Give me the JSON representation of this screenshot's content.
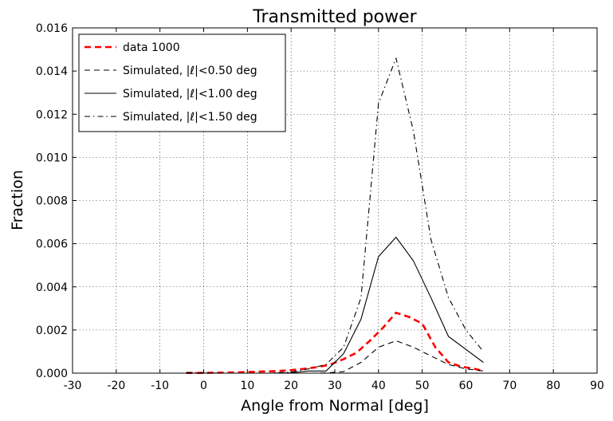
{
  "chart_data": {
    "type": "line",
    "title": "Transmitted power",
    "xlabel": "Angle from Normal [deg]",
    "ylabel": "Fraction",
    "xlim": [
      -30,
      90
    ],
    "ylim": [
      0,
      0.016
    ],
    "x_ticks": [
      -30,
      -20,
      -10,
      0,
      10,
      20,
      30,
      40,
      50,
      60,
      70,
      80,
      90
    ],
    "x_tick_labels": [
      "-30",
      "-20",
      "-10",
      "0",
      "10",
      "20",
      "30",
      "40",
      "50",
      "60",
      "70",
      "80",
      "90"
    ],
    "y_ticks": [
      0,
      0.002,
      0.004,
      0.006,
      0.008,
      0.01,
      0.012,
      0.014,
      0.016
    ],
    "y_tick_labels": [
      "0.000",
      "0.002",
      "0.004",
      "0.006",
      "0.008",
      "0.010",
      "0.012",
      "0.014",
      "0.016"
    ],
    "grid": true,
    "legend_position": "top-left",
    "series": [
      {
        "name": "data 1000",
        "color": "#ff0000",
        "style": "dashed-thick",
        "x": [
          -4,
          -1,
          2,
          5,
          8,
          11,
          14,
          17,
          20,
          23,
          26,
          29,
          32,
          35,
          38,
          41,
          44,
          47,
          50,
          53,
          56,
          59,
          62,
          64
        ],
        "y": [
          1e-05,
          1e-05,
          2e-05,
          3e-05,
          4e-05,
          6e-05,
          8e-05,
          0.0001,
          0.00014,
          0.0002,
          0.00028,
          0.0004,
          0.00065,
          0.00095,
          0.0015,
          0.0021,
          0.0028,
          0.0026,
          0.0023,
          0.0012,
          0.0005,
          0.0003,
          0.0002,
          0.0001
        ]
      },
      {
        "name": "Simulated, |ℓ|<0.50 deg",
        "color": "#000000",
        "style": "dashed",
        "x": [
          -4,
          0,
          5,
          10,
          15,
          20,
          25,
          28,
          32,
          36,
          40,
          44,
          48,
          52,
          56,
          60,
          64
        ],
        "y": [
          0,
          0,
          0,
          0,
          0,
          0,
          0,
          1e-05,
          7e-05,
          0.0005,
          0.0012,
          0.0015,
          0.0012,
          0.0008,
          0.0004,
          0.0002,
          0.0001
        ]
      },
      {
        "name": "Simulated, |ℓ|<1.00 deg",
        "color": "#000000",
        "style": "solid",
        "x": [
          -4,
          0,
          5,
          10,
          15,
          20,
          24,
          28,
          32,
          36,
          40,
          44,
          48,
          52,
          56,
          60,
          64
        ],
        "y": [
          0,
          0,
          0,
          0,
          0,
          2e-05,
          0.0001,
          0.0001,
          0.0009,
          0.0025,
          0.0054,
          0.0063,
          0.0052,
          0.0035,
          0.0017,
          0.0011,
          0.0005
        ]
      },
      {
        "name": "Simulated, |ℓ|<1.50 deg",
        "color": "#000000",
        "style": "dashdot",
        "x": [
          -4,
          0,
          5,
          10,
          15,
          20,
          24,
          28,
          32,
          36,
          40,
          44,
          48,
          52,
          56,
          60,
          64
        ],
        "y": [
          3e-05,
          1e-05,
          0,
          0,
          0,
          5e-05,
          0.0002,
          0.0004,
          0.0012,
          0.0035,
          0.0125,
          0.0146,
          0.0112,
          0.0062,
          0.0035,
          0.002,
          0.001
        ]
      }
    ]
  }
}
